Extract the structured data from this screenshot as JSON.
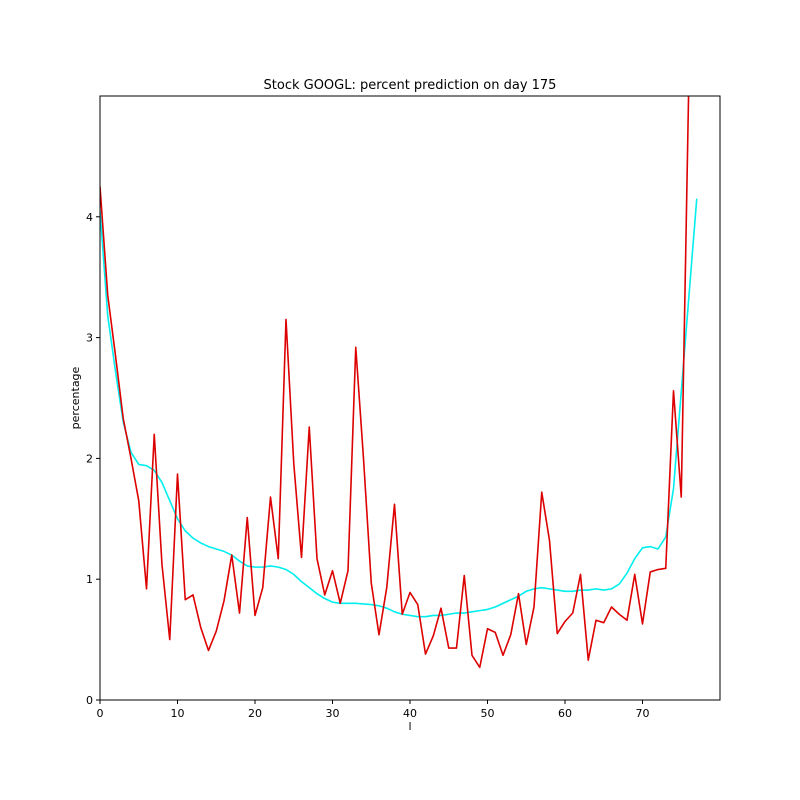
{
  "chart_data": {
    "type": "line",
    "title": "Stock GOOGL: percent prediction on day 175",
    "xlabel": "l",
    "ylabel": "percentage",
    "xlim": [
      0,
      80
    ],
    "ylim": [
      0,
      5
    ],
    "xticks": [
      0,
      10,
      20,
      30,
      40,
      50,
      60,
      70
    ],
    "yticks": [
      0,
      1,
      2,
      3,
      4
    ],
    "grid": false,
    "legend": "none",
    "series": [
      {
        "color": "#00eeee",
        "x": [
          0,
          1,
          2,
          3,
          4,
          5,
          6,
          7,
          8,
          9,
          10,
          11,
          12,
          13,
          14,
          15,
          16,
          17,
          18,
          19,
          20,
          21,
          22,
          23,
          24,
          25,
          26,
          27,
          28,
          29,
          30,
          31,
          32,
          33,
          34,
          35,
          36,
          37,
          38,
          39,
          40,
          41,
          42,
          43,
          44,
          45,
          46,
          47,
          48,
          49,
          50,
          51,
          52,
          53,
          54,
          55,
          56,
          57,
          58,
          59,
          60,
          61,
          62,
          63,
          64,
          65,
          66,
          67,
          68,
          69,
          70,
          71,
          72,
          73,
          74,
          75,
          76,
          77
        ],
        "values": [
          4.05,
          3.18,
          2.72,
          2.3,
          2.05,
          1.95,
          1.94,
          1.9,
          1.8,
          1.65,
          1.5,
          1.4,
          1.34,
          1.3,
          1.27,
          1.25,
          1.23,
          1.2,
          1.15,
          1.11,
          1.1,
          1.1,
          1.11,
          1.1,
          1.08,
          1.04,
          0.98,
          0.93,
          0.88,
          0.84,
          0.81,
          0.8,
          0.8,
          0.8,
          0.795,
          0.79,
          0.78,
          0.76,
          0.73,
          0.71,
          0.7,
          0.69,
          0.69,
          0.7,
          0.7,
          0.71,
          0.72,
          0.72,
          0.73,
          0.74,
          0.75,
          0.77,
          0.8,
          0.83,
          0.86,
          0.9,
          0.92,
          0.93,
          0.92,
          0.91,
          0.9,
          0.9,
          0.91,
          0.91,
          0.92,
          0.91,
          0.92,
          0.96,
          1.05,
          1.17,
          1.26,
          1.27,
          1.25,
          1.35,
          1.75,
          2.55,
          3.35,
          4.15
        ]
      },
      {
        "color": "#dd0000",
        "x": [
          0,
          1,
          2,
          3,
          4,
          5,
          6,
          7,
          8,
          9,
          10,
          11,
          12,
          13,
          14,
          15,
          16,
          17,
          18,
          19,
          20,
          21,
          22,
          23,
          24,
          25,
          26,
          27,
          28,
          29,
          30,
          31,
          32,
          33,
          34,
          35,
          36,
          37,
          38,
          39,
          40,
          41,
          42,
          43,
          44,
          45,
          46,
          47,
          48,
          49,
          50,
          51,
          52,
          53,
          54,
          55,
          56,
          57,
          58,
          59,
          60,
          61,
          62,
          63,
          64,
          65,
          66,
          67,
          68,
          69,
          70,
          71,
          72,
          73,
          74,
          75,
          76,
          77
        ],
        "values": [
          4.25,
          3.35,
          2.85,
          2.33,
          2.0,
          1.65,
          0.92,
          2.2,
          1.12,
          0.5,
          1.87,
          0.83,
          0.87,
          0.6,
          0.41,
          0.57,
          0.82,
          1.2,
          0.72,
          1.51,
          0.7,
          0.93,
          1.68,
          1.17,
          3.15,
          1.96,
          1.18,
          2.26,
          1.17,
          0.87,
          1.07,
          0.8,
          1.07,
          2.92,
          2.0,
          0.97,
          0.54,
          0.93,
          1.62,
          0.71,
          0.89,
          0.79,
          0.38,
          0.53,
          0.76,
          0.43,
          0.43,
          1.03,
          0.37,
          0.27,
          0.59,
          0.56,
          0.37,
          0.54,
          0.88,
          0.46,
          0.77,
          1.72,
          1.32,
          0.55,
          0.65,
          0.72,
          1.04,
          0.33,
          0.66,
          0.64,
          0.77,
          0.71,
          0.66,
          1.04,
          0.63,
          1.06,
          1.08,
          1.09,
          2.56,
          1.68,
          5.2,
          5.2
        ]
      }
    ]
  }
}
